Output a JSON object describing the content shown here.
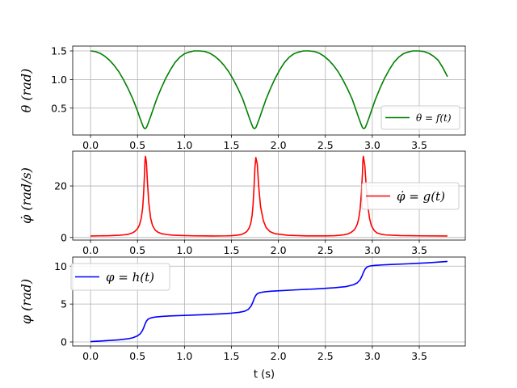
{
  "chart_data": [
    {
      "type": "line",
      "ylabel": "θ (rad)",
      "xlim": [
        -0.19,
        3.99
      ],
      "ylim": [
        0.03,
        1.585
      ],
      "xticks": [
        "0.0",
        "0.5",
        "1.0",
        "1.5",
        "2.0",
        "2.5",
        "3.0",
        "3.5"
      ],
      "yticks": [
        "0.5",
        "1.0",
        "1.5"
      ],
      "grid": true,
      "legend_position": "lower-right",
      "series": [
        {
          "name": "θ = f(t)",
          "color": "#008000",
          "x": [
            0.0,
            0.05,
            0.1,
            0.15,
            0.2,
            0.25,
            0.3,
            0.35,
            0.4,
            0.45,
            0.5,
            0.525,
            0.55,
            0.565,
            0.58,
            0.595,
            0.61,
            0.635,
            0.66,
            0.7,
            0.75,
            0.8,
            0.85,
            0.9,
            0.95,
            1.0,
            1.05,
            1.1,
            1.16,
            1.22,
            1.27,
            1.32,
            1.37,
            1.42,
            1.47,
            1.52,
            1.57,
            1.62,
            1.665,
            1.69,
            1.715,
            1.73,
            1.745,
            1.76,
            1.775,
            1.8,
            1.825,
            1.865,
            1.915,
            1.965,
            2.015,
            2.065,
            2.115,
            2.165,
            2.215,
            2.265,
            2.325,
            2.385,
            2.435,
            2.485,
            2.535,
            2.585,
            2.635,
            2.685,
            2.735,
            2.785,
            2.83,
            2.855,
            2.88,
            2.895,
            2.91,
            2.925,
            2.94,
            2.965,
            2.99,
            3.03,
            3.08,
            3.13,
            3.18,
            3.23,
            3.28,
            3.33,
            3.38,
            3.43,
            3.49,
            3.55,
            3.6,
            3.65,
            3.7,
            3.75,
            3.8
          ],
          "y": [
            1.5,
            1.49,
            1.46,
            1.41,
            1.34,
            1.25,
            1.14,
            1.0,
            0.84,
            0.66,
            0.45,
            0.33,
            0.22,
            0.16,
            0.14,
            0.16,
            0.22,
            0.33,
            0.45,
            0.64,
            0.84,
            1.02,
            1.17,
            1.3,
            1.39,
            1.45,
            1.48,
            1.5,
            1.5,
            1.49,
            1.46,
            1.41,
            1.34,
            1.25,
            1.14,
            1.0,
            0.84,
            0.66,
            0.45,
            0.33,
            0.22,
            0.16,
            0.14,
            0.16,
            0.22,
            0.33,
            0.45,
            0.64,
            0.84,
            1.02,
            1.17,
            1.3,
            1.39,
            1.45,
            1.48,
            1.5,
            1.5,
            1.49,
            1.46,
            1.41,
            1.34,
            1.25,
            1.14,
            1.0,
            0.84,
            0.66,
            0.45,
            0.33,
            0.22,
            0.16,
            0.14,
            0.16,
            0.22,
            0.33,
            0.45,
            0.64,
            0.84,
            1.02,
            1.17,
            1.3,
            1.39,
            1.45,
            1.48,
            1.5,
            1.5,
            1.49,
            1.46,
            1.41,
            1.34,
            1.21,
            1.05
          ]
        }
      ]
    },
    {
      "type": "line",
      "ylabel": "φ̇ (rad/s)",
      "xlim": [
        -0.19,
        3.99
      ],
      "ylim": [
        -1.0,
        33.5
      ],
      "xticks": [
        "0.0",
        "0.5",
        "1.0",
        "1.5",
        "2.0",
        "2.5",
        "3.0",
        "3.5"
      ],
      "yticks": [
        "0",
        "20"
      ],
      "grid": true,
      "legend_position": "center-right",
      "series": [
        {
          "name": "φ̇ = g(t)",
          "color": "#ff0000",
          "x": [
            0.0,
            0.1,
            0.2,
            0.3,
            0.35,
            0.4,
            0.44,
            0.47,
            0.5,
            0.52,
            0.54,
            0.555,
            0.565,
            0.575,
            0.58,
            0.585,
            0.595,
            0.605,
            0.62,
            0.64,
            0.66,
            0.69,
            0.72,
            0.76,
            0.81,
            0.86,
            0.96,
            1.1,
            1.3,
            1.45,
            1.5,
            1.55,
            1.6,
            1.62,
            1.65,
            1.67,
            1.69,
            1.705,
            1.72,
            1.73,
            1.74,
            1.75,
            1.76,
            1.775,
            1.79,
            1.81,
            1.84,
            1.87,
            1.91,
            1.96,
            2.1,
            2.3,
            2.5,
            2.6,
            2.65,
            2.7,
            2.74,
            2.77,
            2.8,
            2.82,
            2.84,
            2.855,
            2.87,
            2.885,
            2.895,
            2.9,
            2.905,
            2.92,
            2.935,
            2.95,
            2.97,
            2.99,
            3.02,
            3.05,
            3.09,
            3.14,
            3.3,
            3.5,
            3.8
          ],
          "y": [
            0.6,
            0.65,
            0.7,
            0.85,
            1.0,
            1.25,
            1.7,
            2.3,
            3.4,
            4.8,
            7.5,
            11.5,
            17.0,
            25.0,
            30.0,
            31.5,
            29.0,
            22.0,
            13.5,
            7.5,
            4.6,
            2.8,
            2.0,
            1.45,
            1.15,
            0.95,
            0.78,
            0.65,
            0.6,
            0.65,
            0.72,
            0.85,
            1.1,
            1.4,
            1.95,
            2.6,
            3.8,
            5.4,
            8.5,
            12.5,
            19.0,
            27.0,
            31.0,
            28.5,
            20.0,
            12.0,
            6.5,
            3.8,
            2.3,
            1.5,
            0.85,
            0.62,
            0.62,
            0.72,
            0.85,
            1.05,
            1.4,
            1.9,
            2.7,
            3.6,
            5.2,
            7.3,
            11.0,
            18.0,
            25.0,
            30.0,
            31.5,
            28.0,
            20.0,
            13.0,
            7.5,
            4.6,
            2.7,
            1.8,
            1.3,
            1.0,
            0.75,
            0.65,
            0.6
          ]
        }
      ]
    },
    {
      "type": "line",
      "xlabel": "t (s)",
      "ylabel": "φ (rad)",
      "xlim": [
        -0.19,
        3.99
      ],
      "ylim": [
        -0.53,
        11.2
      ],
      "xticks": [
        "0.0",
        "0.5",
        "1.0",
        "1.5",
        "2.0",
        "2.5",
        "3.0",
        "3.5"
      ],
      "yticks": [
        "0",
        "5",
        "10"
      ],
      "grid": true,
      "legend_position": "upper-left",
      "series": [
        {
          "name": "φ = h(t)",
          "color": "#0000ff",
          "x": [
            0.0,
            0.1,
            0.2,
            0.3,
            0.4,
            0.45,
            0.5,
            0.53,
            0.55,
            0.565,
            0.58,
            0.595,
            0.61,
            0.63,
            0.66,
            0.7,
            0.76,
            0.85,
            1.0,
            1.2,
            1.4,
            1.5,
            1.58,
            1.64,
            1.68,
            1.71,
            1.73,
            1.745,
            1.76,
            1.775,
            1.79,
            1.82,
            1.86,
            1.93,
            2.05,
            2.2,
            2.4,
            2.6,
            2.72,
            2.8,
            2.84,
            2.87,
            2.89,
            2.91,
            2.925,
            2.94,
            2.96,
            2.99,
            3.03,
            3.1,
            3.2,
            3.4,
            3.6,
            3.8
          ],
          "y": [
            0.05,
            0.12,
            0.2,
            0.28,
            0.42,
            0.55,
            0.8,
            1.1,
            1.45,
            1.85,
            2.35,
            2.75,
            2.98,
            3.12,
            3.22,
            3.3,
            3.37,
            3.43,
            3.5,
            3.6,
            3.72,
            3.8,
            3.9,
            4.05,
            4.3,
            4.75,
            5.3,
            5.8,
            6.15,
            6.35,
            6.45,
            6.55,
            6.62,
            6.7,
            6.78,
            6.88,
            7.0,
            7.15,
            7.3,
            7.55,
            7.8,
            8.2,
            8.7,
            9.3,
            9.65,
            9.85,
            9.97,
            10.05,
            10.1,
            10.16,
            10.22,
            10.32,
            10.45,
            10.62
          ]
        }
      ]
    }
  ]
}
